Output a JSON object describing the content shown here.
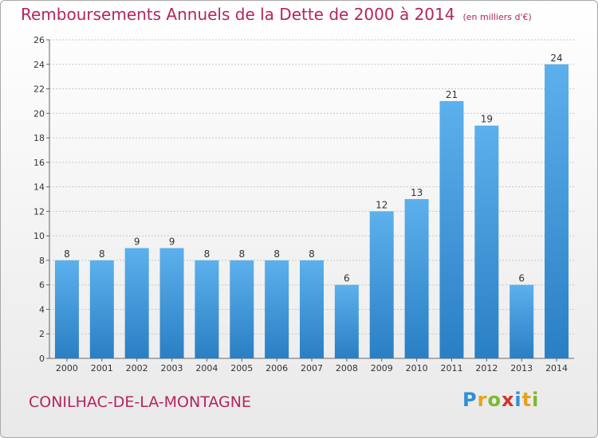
{
  "title": "Remboursements Annuels de la Dette de 2000 à 2014",
  "unit": "(en milliers d'€)",
  "commune": "CONILHAC-DE-LA-MONTAGNE",
  "logo": {
    "p": "P",
    "r": "r",
    "o": "o",
    "x": "x",
    "i": "i",
    "t": "t",
    "i2": "i"
  },
  "colors": {
    "bar": "#4a9fe0",
    "title": "#b5245f"
  },
  "chart_data": {
    "type": "bar",
    "title": "Remboursements Annuels de la Dette de 2000 à 2014",
    "ylabel": "en milliers d'€",
    "xlabel": "",
    "categories": [
      "2000",
      "2001",
      "2002",
      "2003",
      "2004",
      "2005",
      "2006",
      "2007",
      "2008",
      "2009",
      "2010",
      "2011",
      "2012",
      "2013",
      "2014"
    ],
    "values": [
      8,
      8,
      9,
      9,
      8,
      8,
      8,
      8,
      6,
      12,
      13,
      21,
      19,
      6,
      24
    ],
    "ylim": [
      0,
      26
    ],
    "yticks": [
      0,
      2,
      4,
      6,
      8,
      10,
      12,
      14,
      16,
      18,
      20,
      22,
      24,
      26
    ],
    "grid": true
  }
}
